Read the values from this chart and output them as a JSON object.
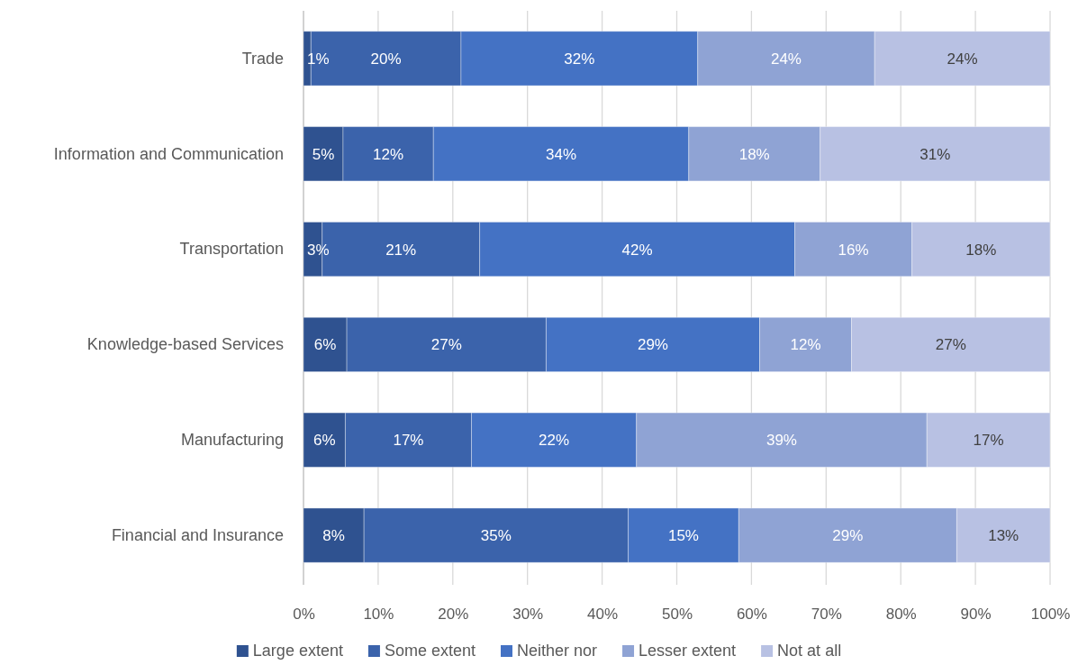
{
  "chart_data": {
    "type": "bar",
    "orientation": "horizontal",
    "stacked": true,
    "categories": [
      "Trade",
      "Information and Communication",
      "Transportation",
      "Knowledge-based Services",
      "Manufacturing",
      "Financial and Insurance"
    ],
    "series": [
      {
        "name": "Large extent",
        "color": "#2f5290",
        "values": [
          1.0,
          5.3,
          2.5,
          5.8,
          5.6,
          8.1
        ],
        "value_labels": [
          "1%",
          "5%",
          "3%",
          "6%",
          "6%",
          "8%"
        ]
      },
      {
        "name": "Some extent",
        "color": "#3b63ab",
        "values": [
          20.1,
          12.1,
          21.1,
          26.7,
          16.9,
          35.4
        ],
        "value_labels": [
          "20%",
          "12%",
          "21%",
          "27%",
          "17%",
          "35%"
        ]
      },
      {
        "name": "Neither nor",
        "color": "#4472c4",
        "values": [
          31.7,
          34.2,
          42.2,
          28.6,
          22.1,
          14.8
        ],
        "value_labels": [
          "32%",
          "34%",
          "42%",
          "29%",
          "22%",
          "15%"
        ]
      },
      {
        "name": "Lesser extent",
        "color": "#8fa3d4",
        "values": [
          23.7,
          17.6,
          15.7,
          12.3,
          38.9,
          29.2
        ],
        "value_labels": [
          "24%",
          "18%",
          "16%",
          "12%",
          "39%",
          "29%"
        ]
      },
      {
        "name": "Not at all",
        "color": "#b8c1e3",
        "values": [
          23.5,
          30.8,
          18.5,
          26.6,
          16.5,
          12.5
        ],
        "value_labels": [
          "24%",
          "31%",
          "18%",
          "27%",
          "17%",
          "13%"
        ]
      }
    ],
    "xlim": [
      0,
      100
    ],
    "xticks": [
      {
        "value": 0,
        "label": "0%"
      },
      {
        "value": 10,
        "label": "10%"
      },
      {
        "value": 20,
        "label": "20%"
      },
      {
        "value": 30,
        "label": "30%"
      },
      {
        "value": 40,
        "label": "40%"
      },
      {
        "value": 50,
        "label": "50%"
      },
      {
        "value": 60,
        "label": "60%"
      },
      {
        "value": 70,
        "label": "70%"
      },
      {
        "value": 80,
        "label": "80%"
      },
      {
        "value": 90,
        "label": "90%"
      },
      {
        "value": 100,
        "label": "100%"
      }
    ],
    "grid": "x",
    "legend": "bottom"
  }
}
